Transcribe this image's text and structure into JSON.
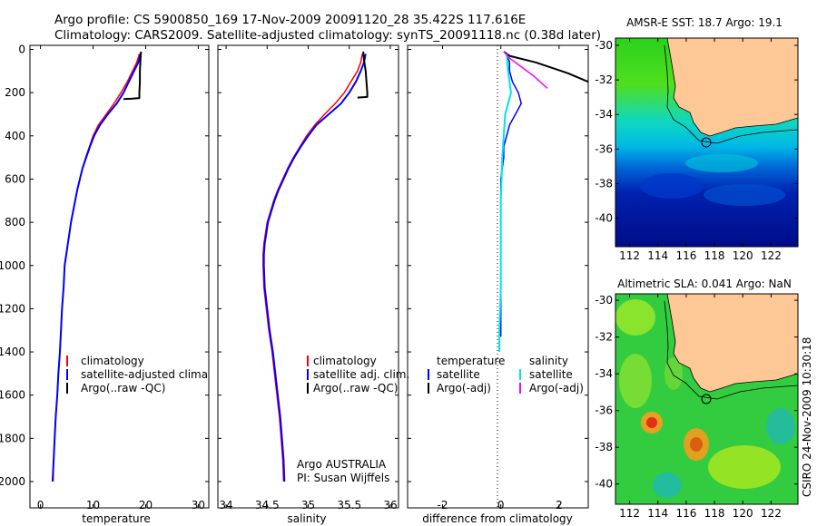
{
  "header": {
    "line1": "Argo profile: CS 5900850_169 17-Nov-2009 20091120_28 35.422S 117.616E",
    "line2": "Climatology: CARS2009. Satellite-adjusted climatology: synTS_20091118.nc (0.38d later)"
  },
  "panels": {
    "temperature": {
      "xlabel": "temperature",
      "xticks": [
        "0",
        "10",
        "20",
        "30"
      ],
      "legend": [
        "climatology",
        "satellite-adjusted climatology",
        "Argo(..raw -QC)"
      ]
    },
    "salinity": {
      "xlabel": "salinity",
      "xticks": [
        "34",
        "34.5",
        "35",
        "35.5",
        "36"
      ],
      "legend": [
        "climatology",
        "satellite adj. clim.",
        "Argo(..raw -QC)"
      ],
      "credit1": "Argo AUSTRALIA",
      "credit2": "PI: Susan Wijffels"
    },
    "difference": {
      "xlabel": "difference from climatology",
      "xticks": [
        "-2",
        "0",
        "2"
      ],
      "legend_head_t": "temperature",
      "legend_head_s": "salinity",
      "legend_t": [
        "satellite",
        "Argo(-adj)"
      ],
      "legend_s": [
        "satellite",
        "Argo(-adj)"
      ]
    },
    "yticks": [
      "0",
      "200",
      "400",
      "600",
      "800",
      "1000",
      "1200",
      "1400",
      "1600",
      "1800",
      "2000"
    ]
  },
  "maps": {
    "sst_title": "AMSR-E SST: 18.7 Argo: 19.1",
    "sla_title": "Altimetric SLA: 0.041 Argo: NaN",
    "lat_ticks": [
      "-30",
      "-32",
      "-34",
      "-36",
      "-38",
      "-40"
    ],
    "lon_ticks": [
      "112",
      "114",
      "116",
      "118",
      "120",
      "122"
    ],
    "side_label": "CSIRO 24-Nov-2009 10:30:18"
  },
  "colors": {
    "climatology": "#ff0000",
    "satellite": "#0000ff",
    "argo": "#000000",
    "sal_satellite": "#00e5e5",
    "sal_argo": "#ff00ff",
    "land": "#fdc896"
  },
  "chart_data": [
    {
      "type": "line",
      "xlabel": "temperature",
      "ylabel": "",
      "xlim": [
        -2,
        32
      ],
      "ylim": [
        2060,
        0
      ],
      "series": [
        {
          "name": "climatology",
          "points": [
            [
              18.8,
              20
            ],
            [
              18.3,
              60
            ],
            [
              17.5,
              100
            ],
            [
              16.5,
              150
            ],
            [
              15.3,
              200
            ],
            [
              14.0,
              250
            ],
            [
              12.5,
              300
            ],
            [
              11.0,
              350
            ],
            [
              10.0,
              400
            ],
            [
              9.3,
              450
            ],
            [
              8.6,
              500
            ],
            [
              8.0,
              550
            ],
            [
              7.5,
              600
            ],
            [
              7.0,
              650
            ],
            [
              6.6,
              700
            ],
            [
              6.2,
              750
            ],
            [
              5.8,
              800
            ],
            [
              5.5,
              850
            ],
            [
              5.2,
              900
            ],
            [
              4.9,
              950
            ],
            [
              4.6,
              1000
            ],
            [
              4.4,
              1100
            ],
            [
              4.1,
              1200
            ],
            [
              3.9,
              1300
            ],
            [
              3.7,
              1400
            ],
            [
              3.4,
              1500
            ],
            [
              3.2,
              1600
            ],
            [
              2.9,
              1700
            ],
            [
              2.7,
              1800
            ],
            [
              2.5,
              1900
            ],
            [
              2.4,
              2000
            ]
          ]
        },
        {
          "name": "satellite-adjusted climatology",
          "points": [
            [
              19.0,
              20
            ],
            [
              18.6,
              60
            ],
            [
              17.8,
              100
            ],
            [
              16.8,
              150
            ],
            [
              15.8,
              200
            ],
            [
              14.5,
              250
            ],
            [
              12.8,
              300
            ],
            [
              11.3,
              350
            ],
            [
              10.2,
              400
            ],
            [
              9.4,
              450
            ],
            [
              8.7,
              500
            ],
            [
              8.0,
              550
            ],
            [
              7.5,
              600
            ],
            [
              7.0,
              650
            ],
            [
              6.6,
              700
            ],
            [
              6.2,
              750
            ],
            [
              5.8,
              800
            ],
            [
              5.5,
              850
            ],
            [
              5.2,
              900
            ],
            [
              4.9,
              950
            ],
            [
              4.6,
              1000
            ],
            [
              4.4,
              1100
            ],
            [
              4.1,
              1200
            ],
            [
              3.9,
              1300
            ],
            [
              3.7,
              1400
            ],
            [
              3.4,
              1500
            ],
            [
              3.2,
              1600
            ],
            [
              2.9,
              1700
            ],
            [
              2.7,
              1800
            ],
            [
              2.5,
              1900
            ],
            [
              2.3,
              2000
            ]
          ]
        },
        {
          "name": "Argo(..raw -QC)",
          "points": [
            [
              19.1,
              10
            ],
            [
              19.0,
              50
            ],
            [
              18.9,
              100
            ],
            [
              18.9,
              150
            ],
            [
              18.8,
              200
            ],
            [
              18.8,
              225
            ],
            [
              17.5,
              228
            ],
            [
              15.8,
              230
            ]
          ]
        }
      ]
    },
    {
      "type": "line",
      "xlabel": "salinity",
      "ylabel": "",
      "xlim": [
        33.9,
        36.1
      ],
      "ylim": [
        2060,
        0
      ],
      "series": [
        {
          "name": "climatology",
          "points": [
            [
              35.66,
              20
            ],
            [
              35.64,
              60
            ],
            [
              35.6,
              100
            ],
            [
              35.52,
              150
            ],
            [
              35.44,
              200
            ],
            [
              35.33,
              250
            ],
            [
              35.2,
              300
            ],
            [
              35.08,
              350
            ],
            [
              34.98,
              400
            ],
            [
              34.9,
              450
            ],
            [
              34.82,
              500
            ],
            [
              34.75,
              550
            ],
            [
              34.69,
              600
            ],
            [
              34.63,
              650
            ],
            [
              34.58,
              700
            ],
            [
              34.54,
              750
            ],
            [
              34.5,
              800
            ],
            [
              34.48,
              850
            ],
            [
              34.46,
              900
            ],
            [
              34.45,
              950
            ],
            [
              34.45,
              1000
            ],
            [
              34.46,
              1100
            ],
            [
              34.49,
              1200
            ],
            [
              34.52,
              1300
            ],
            [
              34.56,
              1400
            ],
            [
              34.59,
              1500
            ],
            [
              34.62,
              1600
            ],
            [
              34.65,
              1700
            ],
            [
              34.67,
              1800
            ],
            [
              34.69,
              1900
            ],
            [
              34.7,
              2000
            ]
          ]
        },
        {
          "name": "satellite adj. clim.",
          "points": [
            [
              35.7,
              20
            ],
            [
              35.68,
              60
            ],
            [
              35.64,
              100
            ],
            [
              35.58,
              150
            ],
            [
              35.5,
              200
            ],
            [
              35.4,
              250
            ],
            [
              35.25,
              300
            ],
            [
              35.1,
              350
            ],
            [
              35.0,
              400
            ],
            [
              34.91,
              450
            ],
            [
              34.83,
              500
            ],
            [
              34.76,
              550
            ],
            [
              34.7,
              600
            ],
            [
              34.64,
              650
            ],
            [
              34.59,
              700
            ],
            [
              34.55,
              750
            ],
            [
              34.51,
              800
            ],
            [
              34.49,
              850
            ],
            [
              34.47,
              900
            ],
            [
              34.46,
              950
            ],
            [
              34.46,
              1000
            ],
            [
              34.47,
              1100
            ],
            [
              34.5,
              1200
            ],
            [
              34.53,
              1300
            ],
            [
              34.57,
              1400
            ],
            [
              34.6,
              1500
            ],
            [
              34.63,
              1600
            ],
            [
              34.66,
              1700
            ],
            [
              34.68,
              1800
            ],
            [
              34.7,
              1900
            ],
            [
              34.71,
              2000
            ]
          ]
        },
        {
          "name": "Argo(..raw -QC)",
          "points": [
            [
              35.67,
              10
            ],
            [
              35.68,
              50
            ],
            [
              35.7,
              100
            ],
            [
              35.71,
              150
            ],
            [
              35.72,
              200
            ],
            [
              35.72,
              220
            ],
            [
              35.6,
              223
            ]
          ]
        }
      ]
    },
    {
      "type": "line",
      "xlabel": "difference from climatology",
      "ylabel": "",
      "xlim": [
        -3.2,
        3.0
      ],
      "ylim": [
        2060,
        0
      ],
      "series": [
        {
          "name": "temperature satellite",
          "points": [
            [
              0.2,
              20
            ],
            [
              0.3,
              60
            ],
            [
              0.3,
              100
            ],
            [
              0.4,
              150
            ],
            [
              0.6,
              200
            ],
            [
              0.7,
              250
            ],
            [
              0.5,
              300
            ],
            [
              0.3,
              350
            ],
            [
              0.2,
              400
            ],
            [
              0.1,
              450
            ],
            [
              0.1,
              500
            ],
            [
              0.0,
              600
            ],
            [
              0.0,
              800
            ],
            [
              0.0,
              1000
            ],
            [
              0.0,
              1200
            ],
            [
              0.0,
              1330
            ]
          ]
        },
        {
          "name": "temperature Argo(-adj)",
          "points": [
            [
              0.1,
              10
            ],
            [
              0.3,
              30
            ],
            [
              1.2,
              60
            ],
            [
              2.3,
              110
            ],
            [
              3.0,
              150
            ]
          ]
        },
        {
          "name": "salinity satellite",
          "points": [
            [
              0.2,
              20
            ],
            [
              0.25,
              100
            ],
            [
              0.3,
              150
            ],
            [
              0.35,
              200
            ],
            [
              0.25,
              250
            ],
            [
              0.15,
              300
            ],
            [
              0.1,
              400
            ],
            [
              0.05,
              500
            ],
            [
              0.0,
              700
            ],
            [
              0.0,
              900
            ],
            [
              0.0,
              1100
            ],
            [
              -0.05,
              1300
            ],
            [
              -0.05,
              1400
            ]
          ]
        },
        {
          "name": "salinity Argo(-adj)",
          "points": [
            [
              0.1,
              10
            ],
            [
              0.3,
              40
            ],
            [
              0.7,
              80
            ],
            [
              1.1,
              120
            ],
            [
              1.6,
              180
            ]
          ]
        }
      ]
    }
  ]
}
